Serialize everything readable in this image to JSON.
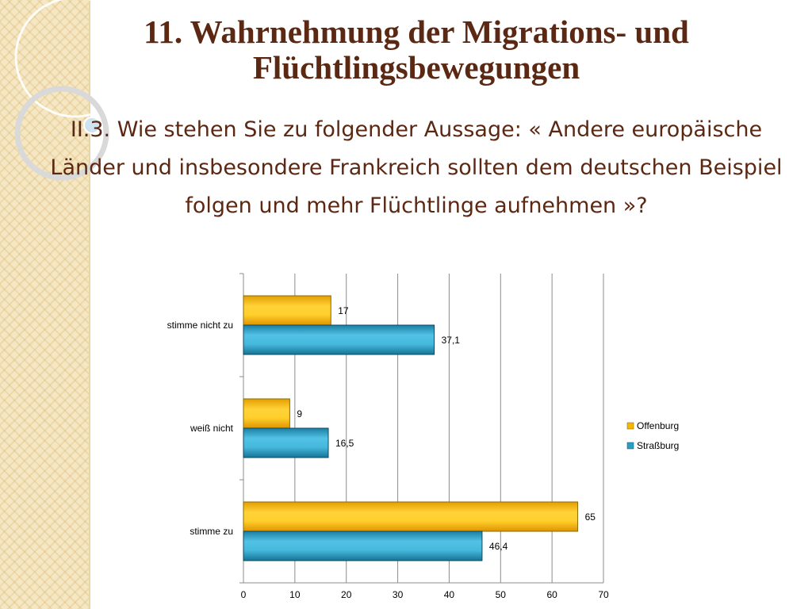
{
  "slide": {
    "title": "11. Wahrnehmung der Migrations- und Flüchtlingsbewegungen",
    "subtitle": "II.3. Wie stehen Sie zu folgender Aussage: « Andere europäische Länder und insbesondere Frankreich sollten dem deutschen Beispiel folgen und mehr Flüchtlinge aufnehmen »?"
  },
  "chart_data": {
    "type": "bar",
    "orientation": "horizontal",
    "categories": [
      "stimme nicht zu",
      "weiß nicht",
      "stimme zu"
    ],
    "series": [
      {
        "name": "Offenburg",
        "values": [
          17,
          9,
          65
        ],
        "labels": [
          "17",
          "9",
          "65"
        ],
        "color": "#f5b800"
      },
      {
        "name": "Straßburg",
        "values": [
          37.1,
          16.5,
          46.4
        ],
        "labels": [
          "37,1",
          "16,5",
          "46,4"
        ],
        "color": "#2a9fc6"
      }
    ],
    "xlim": [
      0,
      70
    ],
    "xticks": [
      "0",
      "10",
      "20",
      "30",
      "40",
      "50",
      "60",
      "70"
    ],
    "grid": true,
    "legend": "right"
  },
  "colors": {
    "title": "#5b2813",
    "accent_stripe": "#f5e7c3"
  }
}
